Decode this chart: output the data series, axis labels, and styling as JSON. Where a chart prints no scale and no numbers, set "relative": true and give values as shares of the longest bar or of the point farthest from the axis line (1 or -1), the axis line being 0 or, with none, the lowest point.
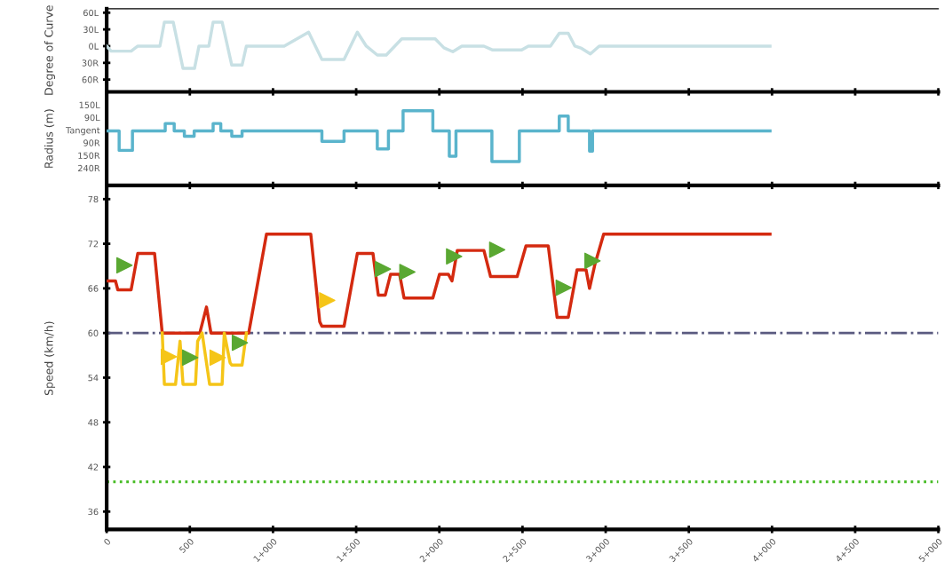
{
  "chart_data": [
    {
      "type": "line",
      "ylabel": "Degree of Curve",
      "xlim": [
        0,
        5000
      ],
      "xticks": [
        0,
        500,
        1000,
        1500,
        2000,
        2500,
        3000,
        3500,
        4000,
        4500,
        5000
      ],
      "tick_labels": "y",
      "ylim": [
        -82,
        67
      ],
      "yticks": [
        {
          "value": 60,
          "label": "60L"
        },
        {
          "value": 30,
          "label": "30L"
        },
        {
          "value": 0,
          "label": "0L"
        },
        {
          "value": -30,
          "label": "30R"
        },
        {
          "value": -60,
          "label": "60R"
        }
      ],
      "grid": false,
      "marker": "none",
      "series": [
        {
          "color": "#c8e0e4",
          "x": [
            0,
            27,
            147,
            187,
            320,
            347,
            400,
            459,
            528,
            555,
            614,
            640,
            694,
            752,
            814,
            840,
            1067,
            1214,
            1294,
            1427,
            1507,
            1561,
            1627,
            1681,
            1774,
            1975,
            2028,
            2081,
            2135,
            2268,
            2321,
            2495,
            2535,
            2668,
            2721,
            2775,
            2815,
            2855,
            2908,
            2961,
            3988
          ],
          "values": [
            0,
            -9,
            -9,
            0,
            0,
            43,
            43,
            -40,
            -40,
            0,
            0,
            43,
            43,
            -34,
            -34,
            0,
            0,
            25,
            -24,
            -24,
            25,
            0,
            -16,
            -16,
            13,
            13,
            -3,
            -10,
            0,
            0,
            -7,
            -7,
            0,
            0,
            23,
            23,
            0,
            -4,
            -14,
            0,
            0
          ]
        }
      ]
    },
    {
      "type": "step",
      "ylabel": "Radius (m)",
      "xlim": [
        0,
        5000
      ],
      "xticks": [
        0,
        500,
        1000,
        1500,
        2000,
        2500,
        3000,
        3500,
        4000,
        4500,
        5000
      ],
      "tick_labels": false,
      "relative": true,
      "annotations": [
        "150L",
        "90L",
        "Tangent",
        "90R",
        "150R",
        "240R"
      ],
      "grid": false,
      "marker": "none",
      "series": [
        {
          "color": "#5ab4cc",
          "x": [
            0,
            75,
            155,
            352,
            406,
            467,
            526,
            640,
            686,
            752,
            814,
            1294,
            1427,
            1627,
            1694,
            1782,
            1961,
            2060,
            2100,
            2316,
            2481,
            2721,
            2775,
            2903,
            2921,
            3988
          ],
          "values": [
            0.73,
            0.47,
            0.73,
            0.83,
            0.73,
            0.66,
            0.73,
            0.83,
            0.73,
            0.66,
            0.73,
            0.59,
            0.73,
            0.49,
            0.73,
            1,
            0.73,
            0.39,
            0.73,
            0.32,
            0.73,
            0.93,
            0.73,
            0.46,
            0.73,
            0.73
          ]
        }
      ]
    },
    {
      "type": "line",
      "ylabel": "Speed (km/h)",
      "xlim": [
        0,
        5000
      ],
      "xticks": [
        {
          "value": 0,
          "label": "0"
        },
        {
          "value": 500,
          "label": "500"
        },
        {
          "value": 1000,
          "label": "1+000"
        },
        {
          "value": 1500,
          "label": "1+500"
        },
        {
          "value": 2000,
          "label": "2+000"
        },
        {
          "value": 2500,
          "label": "2+500"
        },
        {
          "value": 3000,
          "label": "3+000"
        },
        {
          "value": 3500,
          "label": "3+500"
        },
        {
          "value": 4000,
          "label": "4+000"
        },
        {
          "value": 4500,
          "label": "4+500"
        },
        {
          "value": 5000,
          "label": "5+000"
        }
      ],
      "ylim": [
        33.6,
        79.6
      ],
      "yticks": [
        36,
        42,
        48,
        54,
        60,
        66,
        72,
        78
      ],
      "grid": false,
      "marker": "none",
      "ref_lines": [
        {
          "axis": "y",
          "value": 60,
          "color": "#5a5a80",
          "line_style": "dashdot"
        },
        {
          "axis": "y",
          "value": 40,
          "color": "#44bb22",
          "line_style": "dotted"
        }
      ],
      "series": [
        {
          "type": "line",
          "color": "#d42a10",
          "x": [
            0,
            53,
            67,
            147,
            187,
            288,
            334,
            560,
            600,
            627,
            854,
            961,
            1227,
            1281,
            1294,
            1427,
            1507,
            1601,
            1633,
            1675,
            1707,
            1761,
            1788,
            1961,
            2001,
            2054,
            2076,
            2108,
            2268,
            2308,
            2468,
            2521,
            2655,
            2708,
            2775,
            2828,
            2882,
            2903,
            2935,
            2988,
            3988
          ],
          "values": [
            67,
            67,
            65.8,
            65.8,
            70.7,
            70.7,
            60,
            60,
            63.5,
            60,
            60,
            73.3,
            73.3,
            61.5,
            60.9,
            60.9,
            70.7,
            70.7,
            65.1,
            65.1,
            67.9,
            67.9,
            64.7,
            64.7,
            67.9,
            67.9,
            67.0,
            71.1,
            71.1,
            67.6,
            67.6,
            71.7,
            71.7,
            62.1,
            62.1,
            68.5,
            68.5,
            66.0,
            69.2,
            73.3,
            73.3
          ]
        },
        {
          "type": "line",
          "color": "#f5c518",
          "x": [
            334,
            347,
            414,
            441,
            459,
            534,
            547,
            574,
            619,
            694,
            707,
            742,
            752,
            814,
            840
          ],
          "values": [
            60,
            53.1,
            53.1,
            58.9,
            53.1,
            53.1,
            58.9,
            60,
            53.1,
            53.1,
            60,
            56,
            55.7,
            55.7,
            60
          ]
        },
        {
          "type": "scatter",
          "marker": "triangle",
          "color": "#5aa832",
          "x": [
            107,
            502,
            801,
            1661,
            1808,
            2089,
            2348,
            2748,
            2921
          ],
          "values": [
            69.1,
            56.7,
            58.7,
            68.6,
            68.2,
            70.3,
            71.2,
            66.1,
            69.7
          ]
        },
        {
          "type": "scatter",
          "marker": "triangle",
          "color": "#f5c518",
          "x": [
            374,
            667,
            1326
          ],
          "values": [
            56.8,
            56.7,
            64.4
          ]
        }
      ]
    }
  ]
}
